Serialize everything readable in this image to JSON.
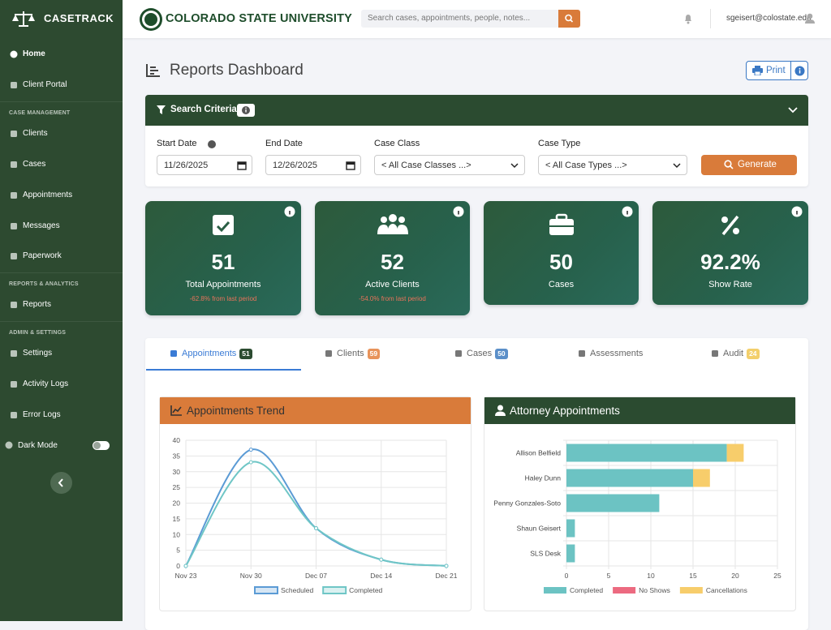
{
  "sidebar": {
    "brand": "CASETRACK",
    "home": [
      "Home",
      "Client Portal"
    ],
    "groups": [
      {
        "title": "CASE MANAGEMENT",
        "items": [
          "Clients",
          "Cases",
          "Appointments",
          "Messages",
          "Paperwork"
        ]
      },
      {
        "title": "REPORTS & ANALYTICS",
        "items": [
          "Reports"
        ]
      },
      {
        "title": "ADMIN & SETTINGS",
        "items": [
          "Settings",
          "Activity Logs",
          "Error Logs"
        ]
      }
    ],
    "dark_mode": "Dark Mode"
  },
  "header": {
    "university": "COLORADO STATE UNIVERSITY",
    "search_placeholder": "Search cases, appointments, people, notes...",
    "user": "sgeisert@colostate.edu"
  },
  "page": {
    "title": "Reports Dashboard",
    "print": "Print"
  },
  "search_criteria": {
    "title": "Search Criteria",
    "fields": [
      {
        "label": "Start Date",
        "value": "11/26/2025"
      },
      {
        "label": "End Date",
        "value": "12/26/2025"
      },
      {
        "label": "Case Class",
        "value": "< All Case Classes ...>"
      },
      {
        "label": "Case Type",
        "value": "< All Case Types ...>"
      }
    ],
    "button": "Generate"
  },
  "stats": [
    {
      "value": 51,
      "label": "Total Appointments",
      "change": "-62.8% from last period"
    },
    {
      "value": 52,
      "label": "Active Clients",
      "change": "-54.0% from last period"
    },
    {
      "value": 50,
      "label": "Cases"
    },
    {
      "value": "92.2%",
      "label": "Show Rate"
    }
  ],
  "tabs": [
    {
      "label": "Appointments",
      "count": 51
    },
    {
      "label": "Clients",
      "count": 59
    },
    {
      "label": "Cases",
      "count": 50
    },
    {
      "label": "Assessments"
    },
    {
      "label": "Audit",
      "count": 24
    }
  ],
  "chart_data": [
    {
      "type": "line",
      "title": "Appointments Trend",
      "categories": [
        "Nov 23",
        "Nov 30",
        "Dec 07",
        "Dec 14",
        "Dec 21"
      ],
      "series": [
        {
          "name": "Scheduled",
          "color": "#5b9bd5",
          "values": [
            0,
            37,
            12,
            2,
            0
          ]
        },
        {
          "name": "Completed",
          "color": "#6fc6c6",
          "values": [
            0,
            33,
            12,
            2,
            0
          ]
        }
      ],
      "ylim": [
        0,
        40
      ],
      "yticks": [
        0,
        5,
        10,
        15,
        20,
        25,
        30,
        35,
        40
      ],
      "grid": true
    },
    {
      "type": "hbar",
      "title": "Attorney Appointments",
      "stacked": true,
      "categories": [
        "Allison Belfield",
        "Haley Dunn",
        "Penny Gonzales-Soto",
        "Shaun Geisert",
        "SLS Desk"
      ],
      "series": [
        {
          "name": "Completed",
          "color": "#6cc3c3",
          "values": [
            19,
            15,
            11,
            1,
            1
          ]
        },
        {
          "name": "No Shows",
          "color": "#ec6a80",
          "values": [
            0,
            0,
            0,
            0,
            0
          ]
        },
        {
          "name": "Cancellations",
          "color": "#f7cd6b",
          "values": [
            2,
            2,
            0,
            0,
            0
          ]
        }
      ],
      "xlim": [
        0,
        25
      ],
      "xticks": [
        0,
        5,
        10,
        15,
        20,
        25
      ],
      "grid": true
    }
  ]
}
